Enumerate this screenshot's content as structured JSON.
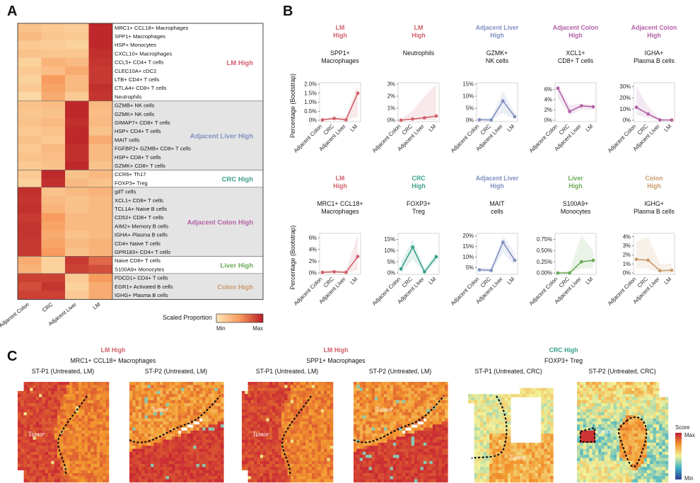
{
  "panel_labels": {
    "a": "A",
    "b": "B",
    "c": "C"
  },
  "heatmap": {
    "columns": [
      "Adjacent Colon",
      "CRC",
      "Adjacent Liver",
      "LM"
    ],
    "rows": [
      "MRC1+ CCL18+ Macrophages",
      "SPP1+ Macrophages",
      "HSP+ Monocytes",
      "CXCL10+ Macrophages",
      "CCL5+ CD4+ T cells",
      "CLEC10A+ cDC2",
      "LTB+ CD4+ T cells",
      "CTLA4+ CD8+ T cells",
      "Neutrophils",
      "GZMB+ NK cells",
      "GZMK+ NK cells",
      "GIMAP7+ CD8+ T cells",
      "HSP+ CD4+ T cells",
      "MAIT cells",
      "FGFBP2+ GZMB+ CD8+ T cells",
      "HSP+ CD8+ T cells",
      "GZMK+ CD8+ T cells",
      "CCR6+ Th17",
      "FOXP3+ Treg",
      "gdT cells",
      "XCL1+ CD8+ T cells",
      "TCL1A+ Naive B cells",
      "CD52+ CD8+ T cells",
      "AIM2+ Memory B cells",
      "IGHA+ Plasma B cells",
      "CD4+ Naive T cells",
      "GPR183+ CD4+ T cells",
      "Naive CD8+ T cells",
      "S100A9+ Monocytes",
      "PDCD1+ CD4+ T cells",
      "EGR1+ Activated B cells",
      "IGHG+ Plasma B cells"
    ],
    "values": [
      [
        0.25,
        0.2,
        0.18,
        0.95
      ],
      [
        0.3,
        0.22,
        0.2,
        0.95
      ],
      [
        0.2,
        0.18,
        0.15,
        0.95
      ],
      [
        0.25,
        0.22,
        0.22,
        0.92
      ],
      [
        0.15,
        0.35,
        0.3,
        0.9
      ],
      [
        0.2,
        0.28,
        0.4,
        0.88
      ],
      [
        0.15,
        0.5,
        0.3,
        0.88
      ],
      [
        0.2,
        0.45,
        0.3,
        0.92
      ],
      [
        0.1,
        0.4,
        0.2,
        0.9
      ],
      [
        0.25,
        0.28,
        0.95,
        0.3
      ],
      [
        0.22,
        0.25,
        0.95,
        0.28
      ],
      [
        0.25,
        0.3,
        0.92,
        0.3
      ],
      [
        0.2,
        0.25,
        0.95,
        0.25
      ],
      [
        0.25,
        0.2,
        0.95,
        0.4
      ],
      [
        0.2,
        0.3,
        0.92,
        0.3
      ],
      [
        0.25,
        0.28,
        0.92,
        0.3
      ],
      [
        0.2,
        0.25,
        0.95,
        0.25
      ],
      [
        0.2,
        0.95,
        0.25,
        0.3
      ],
      [
        0.15,
        0.92,
        0.3,
        0.25
      ],
      [
        0.92,
        0.25,
        0.3,
        0.35
      ],
      [
        0.9,
        0.3,
        0.25,
        0.3
      ],
      [
        0.92,
        0.35,
        0.25,
        0.3
      ],
      [
        0.88,
        0.5,
        0.3,
        0.3
      ],
      [
        0.9,
        0.45,
        0.3,
        0.3
      ],
      [
        0.9,
        0.4,
        0.25,
        0.3
      ],
      [
        0.88,
        0.45,
        0.3,
        0.35
      ],
      [
        0.88,
        0.5,
        0.25,
        0.35
      ],
      [
        0.4,
        0.15,
        0.88,
        0.7
      ],
      [
        0.35,
        0.15,
        0.85,
        0.8
      ],
      [
        0.85,
        0.85,
        0.2,
        0.5
      ],
      [
        0.8,
        0.9,
        0.15,
        0.4
      ],
      [
        0.85,
        0.85,
        0.2,
        0.4
      ]
    ],
    "groups": [
      {
        "label": "LM High",
        "rows": 9,
        "color": "#d0606a"
      },
      {
        "label": "Adjacent Liver High",
        "rows": 8,
        "color": "#7f8fc0"
      },
      {
        "label": "CRC High",
        "rows": 2,
        "color": "#3aa08a"
      },
      {
        "label": "Adjacent Colon High",
        "rows": 8,
        "color": "#b261a6"
      },
      {
        "label": "Liver High",
        "rows": 2,
        "color": "#6aaa55"
      },
      {
        "label": "Colon High",
        "rows": 3,
        "color": "#c99a6c"
      }
    ],
    "legend": {
      "title": "Scaled Proportion",
      "min": "Min",
      "max": "Max"
    }
  },
  "line_panels": {
    "ylabel": "Percentage (Bootstrap)",
    "xcats": [
      "Adjacent Colon",
      "CRC",
      "Adjacent Liver",
      "LM"
    ],
    "plots": [
      {
        "header": [
          "LM",
          "High"
        ],
        "hcolor": "#d0606a",
        "title": [
          "SPP1+",
          "Macrophages"
        ],
        "color": "#d0606a",
        "yticks": [
          "0%",
          "0.5%",
          "1.0%",
          "1.5%",
          "2.0%"
        ],
        "ymax": 2.0,
        "values": [
          0.02,
          0.1,
          0.02,
          1.5
        ],
        "lo": [
          0,
          0,
          0,
          0.2
        ],
        "hi": [
          0.1,
          0.2,
          0.2,
          1.95
        ]
      },
      {
        "header": [
          "LM",
          "High"
        ],
        "hcolor": "#d0606a",
        "title": [
          "Neutrophils"
        ],
        "color": "#d0606a",
        "yticks": [
          "0%",
          "1%",
          "2%",
          "3%"
        ],
        "ymax": 3.0,
        "values": [
          0.0,
          0.1,
          0.2,
          0.35
        ],
        "lo": [
          0,
          0,
          0,
          0
        ],
        "hi": [
          0.1,
          0.8,
          2.0,
          3.0
        ]
      },
      {
        "header": [
          "Adjacent Liver",
          "High"
        ],
        "hcolor": "#7f8fc0",
        "title": [
          "GZMK+",
          "NK cells"
        ],
        "color": "#7f8fc0",
        "yticks": [
          "0%",
          "5%",
          "10%",
          "15%"
        ],
        "ymax": 15,
        "values": [
          0.2,
          0.1,
          8.0,
          1.5
        ],
        "lo": [
          0,
          0,
          3,
          0.5
        ],
        "hi": [
          1,
          1,
          12,
          3
        ]
      },
      {
        "header": [
          "Adjacent Colon",
          "High"
        ],
        "hcolor": "#b261a6",
        "title": [
          "XCL1+",
          "CD8+ T cells"
        ],
        "color": "#b261a6",
        "yticks": [
          "0%",
          "2%",
          "4%",
          "6%"
        ],
        "ymax": 7,
        "values": [
          6.2,
          1.7,
          2.8,
          2.6
        ],
        "lo": [
          4.3,
          1.0,
          2.0,
          2.0
        ],
        "hi": [
          7.0,
          3.0,
          3.2,
          3.0
        ]
      },
      {
        "header": [
          "Adjacent Colon",
          "High"
        ],
        "hcolor": "#b261a6",
        "title": [
          "IGHA+",
          "Plasma B cells"
        ],
        "color": "#b261a6",
        "yticks": [
          "0%",
          "10%",
          "20%",
          "30%"
        ],
        "ymax": 32,
        "values": [
          11.5,
          5.5,
          0.3,
          0.2
        ],
        "lo": [
          5,
          2,
          0,
          0
        ],
        "hi": [
          30,
          12,
          1,
          1
        ]
      },
      {
        "header": [
          "LM",
          "High"
        ],
        "hcolor": "#d0606a",
        "title": [
          "MRC1+ CCL18+",
          "Macrophages"
        ],
        "color": "#d0606a",
        "yticks": [
          "0%",
          "2%",
          "4%",
          "6%"
        ],
        "ymax": 6.5,
        "values": [
          0.1,
          0.2,
          0.1,
          2.8
        ],
        "lo": [
          0,
          0,
          0,
          0.5
        ],
        "hi": [
          0.5,
          0.5,
          0.5,
          6.5
        ]
      },
      {
        "header": [
          "CRC",
          "High"
        ],
        "hcolor": "#3aa08a",
        "title": [
          "FOXP3+",
          "Treg"
        ],
        "color": "#3aa08a",
        "yticks": [
          "0%",
          "5%",
          "10%",
          "15%"
        ],
        "ymax": 17,
        "values": [
          1.8,
          11.5,
          0.5,
          7.2
        ],
        "lo": [
          0,
          6,
          0,
          5
        ],
        "hi": [
          5,
          15,
          2,
          9
        ]
      },
      {
        "header": [
          "Adjacent Liver",
          "High"
        ],
        "hcolor": "#7f8fc0",
        "title": [
          "MAIT",
          "cells"
        ],
        "color": "#7f8fc0",
        "yticks": [
          "5%",
          "10%",
          "15%",
          "20%"
        ],
        "ymin": 2.5,
        "ymax": 20.5,
        "values": [
          4.0,
          3.7,
          17.0,
          8.5
        ],
        "lo": [
          3,
          3,
          12,
          6
        ],
        "hi": [
          5,
          5,
          20,
          12
        ]
      },
      {
        "header": [
          "Liver",
          "High"
        ],
        "hcolor": "#6aaa55",
        "title": [
          "S100A9+",
          "Monocytes"
        ],
        "color": "#6aaa55",
        "yticks": [
          "0.00%",
          "0.25%",
          "0.50%",
          "0.75%"
        ],
        "ymax": 0.85,
        "values": [
          0.0,
          0.0,
          0.25,
          0.28
        ],
        "lo": [
          0,
          0,
          0.1,
          0.1
        ],
        "hi": [
          0.02,
          0.05,
          0.85,
          0.5
        ]
      },
      {
        "header": [
          "Colon",
          "High"
        ],
        "hcolor": "#c99a6c",
        "title": [
          "IGHG+",
          "Plasma B cells"
        ],
        "color": "#c99a6c",
        "yticks": [
          "0%",
          "1%",
          "2%",
          "3%",
          "4%"
        ],
        "ymax": 4.2,
        "values": [
          1.5,
          1.4,
          0.25,
          0.3
        ],
        "lo": [
          0.5,
          0.5,
          0,
          0
        ],
        "hi": [
          3.5,
          4.0,
          1,
          1
        ]
      }
    ]
  },
  "spatial": {
    "groups": [
      {
        "header": "LM High",
        "hcolor": "#d0606a",
        "title": "MRC1+ CCL18+ Macrophages"
      },
      {
        "header": "LM High",
        "hcolor": "#d0606a",
        "title": "SPP1+ Macrophages"
      },
      {
        "header": "CRC High",
        "hcolor": "#3aa08a",
        "title": "FOXP3+ Treg"
      }
    ],
    "sections": [
      "ST-P1 (Untreated, LM)",
      "ST-P2 (Untreated, LM)",
      "ST-P1 (Untreated, LM)",
      "ST-P2 (Untreated, LM)",
      "ST-P1 (Untreated, CRC)",
      "ST-P2 (Untreated, CRC)"
    ],
    "tumor_label": "Tumor",
    "legend": {
      "title": "Score",
      "max": "Max",
      "min": "Min"
    }
  }
}
